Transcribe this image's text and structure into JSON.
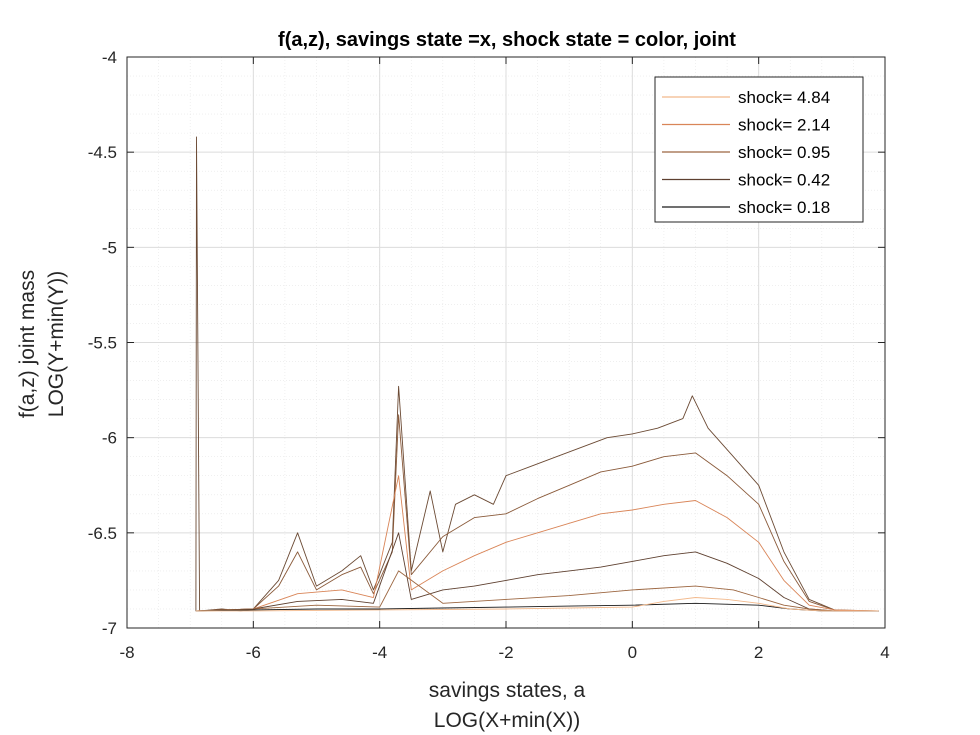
{
  "chart_data": {
    "type": "line",
    "title": "f(a,z), savings state =x, shock state = color, joint",
    "xlabel": [
      "savings states, a",
      "LOG(X+min(X))"
    ],
    "ylabel": [
      "f(a,z) joint mass",
      "LOG(Y+min(Y))"
    ],
    "xlim": [
      -8,
      4
    ],
    "ylim": [
      -7,
      -4
    ],
    "xticks": [
      "-8",
      "-6",
      "-4",
      "-2",
      "0",
      "2",
      "4"
    ],
    "yticks": [
      "-4",
      "-4.5",
      "-5",
      "-5.5",
      "-6",
      "-6.5",
      "-7"
    ],
    "grid": true,
    "minor_grid": true,
    "legend_position": "top-right",
    "legend": [
      "shock=  4.84",
      "shock=  2.14",
      "shock=  0.95",
      "shock=  0.42",
      "shock=  0.18"
    ],
    "series_colors": [
      "#f2b98c",
      "#d98558",
      "#9c6640",
      "#5e4030",
      "#1a1a1a"
    ],
    "series_note": "Many overlapping lines per shock color; representative curves below",
    "series": [
      {
        "color": "#6b4a34",
        "x": [
          -6.91,
          -6.9,
          -6.85,
          -6.5,
          -6.2,
          -6.0,
          -5.6,
          -5.3,
          -5.0,
          -4.6,
          -4.3,
          -4.1,
          -3.8,
          -3.7,
          -3.5,
          -3.2,
          -3.0,
          -2.8,
          -2.5,
          -2.2,
          -2.0,
          -1.6,
          -1.2,
          -0.8,
          -0.4,
          0.0,
          0.4,
          0.8,
          0.95,
          1.2,
          1.6,
          2.0,
          2.4,
          2.8,
          3.2,
          3.6,
          3.9
        ],
        "y": [
          -6.91,
          -4.42,
          -6.91,
          -6.9,
          -6.91,
          -6.9,
          -6.75,
          -6.5,
          -6.78,
          -6.7,
          -6.62,
          -6.8,
          -6.55,
          -5.73,
          -6.7,
          -6.28,
          -6.6,
          -6.35,
          -6.3,
          -6.35,
          -6.2,
          -6.15,
          -6.1,
          -6.05,
          -6.0,
          -5.98,
          -5.95,
          -5.9,
          -5.78,
          -5.95,
          -6.1,
          -6.25,
          -6.6,
          -6.85,
          -6.905,
          -6.91,
          -6.91
        ]
      },
      {
        "color": "#8a5a3a",
        "x": [
          -6.91,
          -6.0,
          -5.6,
          -5.3,
          -5.0,
          -4.6,
          -4.3,
          -4.1,
          -3.8,
          -3.7,
          -3.5,
          -3.0,
          -2.5,
          -2.0,
          -1.5,
          -1.0,
          -0.5,
          0.0,
          0.5,
          1.0,
          1.5,
          2.0,
          2.4,
          2.8,
          3.2,
          3.9
        ],
        "y": [
          -6.91,
          -6.9,
          -6.78,
          -6.6,
          -6.8,
          -6.72,
          -6.68,
          -6.82,
          -6.6,
          -5.88,
          -6.72,
          -6.52,
          -6.42,
          -6.4,
          -6.32,
          -6.25,
          -6.18,
          -6.15,
          -6.1,
          -6.08,
          -6.2,
          -6.35,
          -6.65,
          -6.86,
          -6.905,
          -6.91
        ]
      },
      {
        "color": "#d98558",
        "x": [
          -6.91,
          -6.0,
          -5.3,
          -4.6,
          -4.1,
          -3.7,
          -3.5,
          -3.0,
          -2.5,
          -2.0,
          -1.5,
          -1.0,
          -0.5,
          0.0,
          0.5,
          1.0,
          1.5,
          2.0,
          2.4,
          2.8,
          3.2,
          3.9
        ],
        "y": [
          -6.91,
          -6.9,
          -6.82,
          -6.8,
          -6.84,
          -6.2,
          -6.8,
          -6.7,
          -6.62,
          -6.55,
          -6.5,
          -6.45,
          -6.4,
          -6.38,
          -6.35,
          -6.33,
          -6.42,
          -6.55,
          -6.75,
          -6.88,
          -6.905,
          -6.91
        ]
      },
      {
        "color": "#5e4030",
        "x": [
          -6.91,
          -6.0,
          -5.3,
          -4.6,
          -4.1,
          -3.7,
          -3.5,
          -3.0,
          -2.5,
          -2.0,
          -1.5,
          -1.0,
          -0.5,
          0.0,
          0.5,
          1.0,
          1.5,
          2.0,
          2.4,
          2.8,
          3.2,
          3.9
        ],
        "y": [
          -6.91,
          -6.9,
          -6.86,
          -6.85,
          -6.87,
          -6.5,
          -6.85,
          -6.8,
          -6.78,
          -6.75,
          -6.72,
          -6.7,
          -6.68,
          -6.65,
          -6.62,
          -6.6,
          -6.66,
          -6.74,
          -6.84,
          -6.9,
          -6.91,
          -6.91
        ]
      },
      {
        "color": "#9c6640",
        "x": [
          -6.91,
          -6.0,
          -5.0,
          -4.0,
          -3.7,
          -3.0,
          -2.0,
          -1.0,
          0.0,
          1.0,
          1.6,
          2.0,
          2.4,
          2.8,
          3.2,
          3.9
        ],
        "y": [
          -6.91,
          -6.9,
          -6.88,
          -6.89,
          -6.7,
          -6.87,
          -6.85,
          -6.83,
          -6.8,
          -6.78,
          -6.8,
          -6.84,
          -6.88,
          -6.9,
          -6.91,
          -6.91
        ]
      },
      {
        "color": "#1a1a1a",
        "x": [
          -6.91,
          -6.0,
          -5.0,
          -4.0,
          -3.0,
          -2.0,
          -1.0,
          0.0,
          1.0,
          2.0,
          2.5,
          3.0,
          3.9
        ],
        "y": [
          -6.91,
          -6.905,
          -6.9,
          -6.9,
          -6.895,
          -6.89,
          -6.885,
          -6.88,
          -6.87,
          -6.88,
          -6.9,
          -6.91,
          -6.91
        ]
      },
      {
        "color": "#f2b98c",
        "x": [
          -6.91,
          -6.0,
          -4.0,
          -2.0,
          -1.0,
          0.0,
          0.5,
          1.0,
          1.5,
          2.0,
          2.5,
          3.0,
          3.9
        ],
        "y": [
          -6.91,
          -6.91,
          -6.905,
          -6.9,
          -6.895,
          -6.89,
          -6.86,
          -6.84,
          -6.85,
          -6.87,
          -6.9,
          -6.91,
          -6.91
        ]
      }
    ]
  }
}
